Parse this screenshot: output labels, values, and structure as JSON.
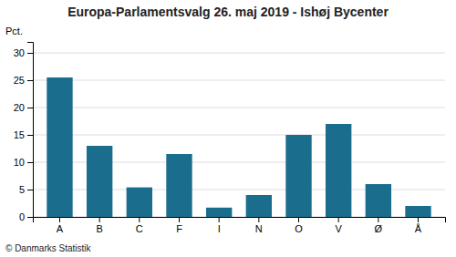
{
  "chart_data": {
    "type": "bar",
    "title": "Europa-Parlamentsvalg 26. maj 2019 - Ishøj Bycenter",
    "ylabel": "Pct.",
    "annotations": [
      "© Danmarks Statistik"
    ],
    "categories": [
      "A",
      "B",
      "C",
      "F",
      "I",
      "N",
      "O",
      "V",
      "Ø",
      "Å"
    ],
    "values": [
      25.5,
      13.0,
      5.4,
      11.5,
      1.7,
      4.0,
      15.0,
      17.0,
      6.0,
      2.0
    ],
    "color": "#1b6d8e",
    "ylim": [
      0,
      32
    ],
    "yticks": [
      0,
      5,
      10,
      15,
      20,
      25,
      30
    ],
    "grid": true
  }
}
